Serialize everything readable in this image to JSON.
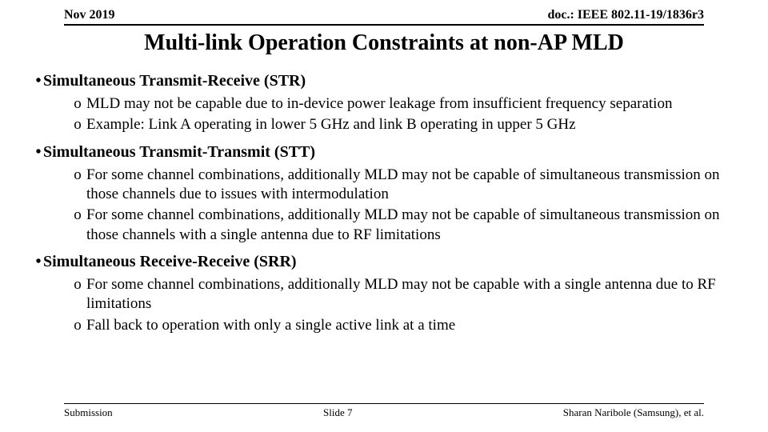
{
  "header": {
    "left": "Nov 2019",
    "right": "doc.: IEEE 802.11-19/1836r3"
  },
  "title": "Multi-link Operation Constraints at non-AP MLD",
  "sections": [
    {
      "heading": "Simultaneous Transmit-Receive (STR)",
      "items": [
        "MLD may not be capable due to in-device power leakage from insufficient frequency separation",
        "Example: Link A operating in lower 5 GHz and link B operating in upper 5 GHz"
      ]
    },
    {
      "heading": "Simultaneous Transmit-Transmit (STT)",
      "items": [
        "For some channel combinations, additionally MLD may not be capable of simultaneous transmission on those channels due to issues with intermodulation",
        "For some channel combinations, additionally MLD may not be capable of simultaneous transmission on those channels with a single antenna due to RF limitations"
      ]
    },
    {
      "heading": "Simultaneous Receive-Receive (SRR)",
      "items": [
        "For some channel combinations, additionally MLD may not be capable with a single antenna due to RF limitations",
        " Fall back to operation with only a single active link at a time"
      ]
    }
  ],
  "footer": {
    "left": "Submission",
    "center": "Slide 7",
    "right": "Sharan Naribole (Samsung), et al."
  },
  "bullets": {
    "l1": "•",
    "l2": "o"
  }
}
